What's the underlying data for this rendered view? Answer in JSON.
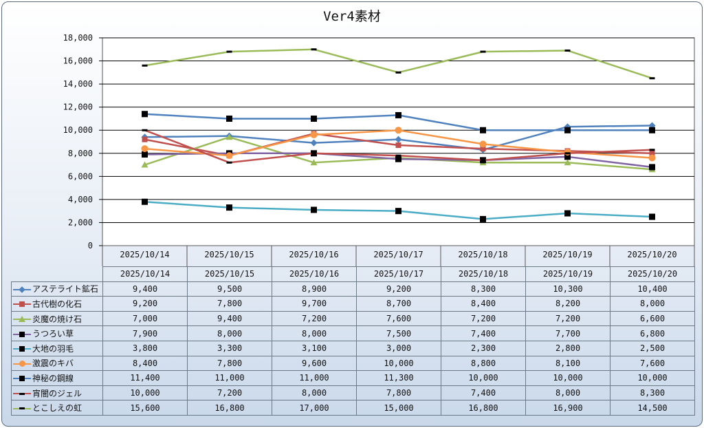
{
  "title": "Ver4素材",
  "chart_data": {
    "type": "line",
    "title": "Ver4素材",
    "categories": [
      "2025/10/14",
      "2025/10/15",
      "2025/10/16",
      "2025/10/17",
      "2025/10/18",
      "2025/10/19",
      "2025/10/20"
    ],
    "ylim": [
      0,
      18000
    ],
    "yticks": [
      "0",
      "2,000",
      "4,000",
      "6,000",
      "8,000",
      "10,000",
      "12,000",
      "14,000",
      "16,000",
      "18,000"
    ],
    "grid": true,
    "legend": "data-table",
    "series": [
      {
        "name": "アステライト鉱石",
        "color": "#4f81bd",
        "marker": "diamond",
        "values": [
          9400,
          9500,
          8900,
          9200,
          8300,
          10300,
          10400
        ],
        "labels": [
          "9,400",
          "9,500",
          "8,900",
          "9,200",
          "8,300",
          "10,300",
          "10,400"
        ]
      },
      {
        "name": "古代樹の化石",
        "color": "#c0504d",
        "marker": "square",
        "values": [
          9200,
          7800,
          9700,
          8700,
          8400,
          8200,
          8000
        ],
        "labels": [
          "9,200",
          "7,800",
          "9,700",
          "8,700",
          "8,400",
          "8,200",
          "8,000"
        ]
      },
      {
        "name": "炎魔の焼け石",
        "color": "#9bbb59",
        "marker": "triangle",
        "values": [
          7000,
          9400,
          7200,
          7600,
          7200,
          7200,
          6600
        ],
        "labels": [
          "7,000",
          "9,400",
          "7,200",
          "7,600",
          "7,200",
          "7,200",
          "6,600"
        ]
      },
      {
        "name": "うつろい草",
        "color": "#8064a2",
        "marker": "blacksquare",
        "values": [
          7900,
          8000,
          8000,
          7500,
          7400,
          7700,
          6800
        ],
        "labels": [
          "7,900",
          "8,000",
          "8,000",
          "7,500",
          "7,400",
          "7,700",
          "6,800"
        ]
      },
      {
        "name": "大地の羽毛",
        "color": "#4bacc6",
        "marker": "blacksquare",
        "values": [
          3800,
          3300,
          3100,
          3000,
          2300,
          2800,
          2500
        ],
        "labels": [
          "3,800",
          "3,300",
          "3,100",
          "3,000",
          "2,300",
          "2,800",
          "2,500"
        ]
      },
      {
        "name": "激震のキバ",
        "color": "#f79646",
        "marker": "circle",
        "values": [
          8400,
          7800,
          9600,
          10000,
          8800,
          8100,
          7600
        ],
        "labels": [
          "8,400",
          "7,800",
          "9,600",
          "10,000",
          "8,800",
          "8,100",
          "7,600"
        ]
      },
      {
        "name": "神秘の鋼線",
        "color": "#4f81bd",
        "marker": "blacksquare",
        "values": [
          11400,
          11000,
          11000,
          11300,
          10000,
          10000,
          10000
        ],
        "labels": [
          "11,400",
          "11,000",
          "11,000",
          "11,300",
          "10,000",
          "10,000",
          "10,000"
        ]
      },
      {
        "name": "宵闇のジェル",
        "color": "#c0504d",
        "marker": "dash",
        "values": [
          10000,
          7200,
          8000,
          7800,
          7400,
          8000,
          8300
        ],
        "labels": [
          "10,000",
          "7,200",
          "8,000",
          "7,800",
          "7,400",
          "8,000",
          "8,300"
        ]
      },
      {
        "name": "とこしえの虹",
        "color": "#9bbb59",
        "marker": "dash",
        "values": [
          15600,
          16800,
          17000,
          15000,
          16800,
          16900,
          14500
        ],
        "labels": [
          "15,600",
          "16,800",
          "17,000",
          "15,000",
          "16,800",
          "16,900",
          "14,500"
        ]
      }
    ]
  }
}
